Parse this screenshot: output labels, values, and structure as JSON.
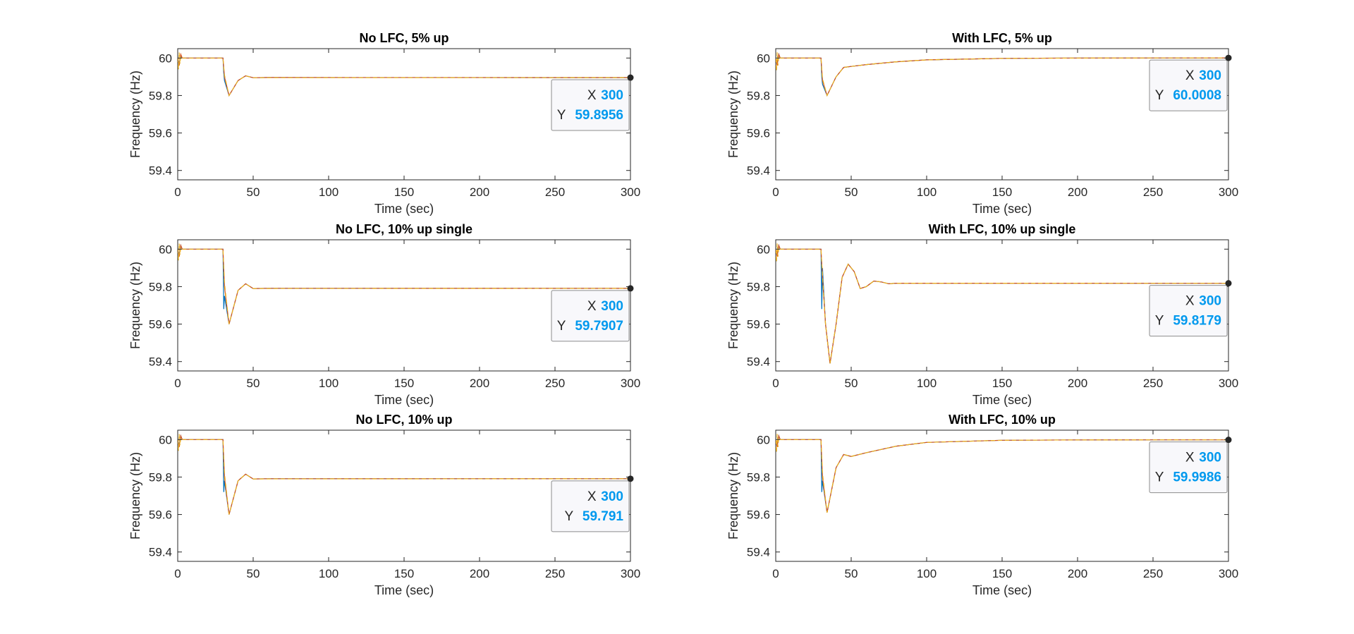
{
  "colors": {
    "series": [
      "#0072BD",
      "#D95319",
      "#EDB120",
      "#7E2F8E",
      "#77AC30"
    ],
    "tip_value": "#0099ee",
    "marker": "#262626"
  },
  "chart_data": [
    {
      "type": "line",
      "title": "No LFC, 5% up",
      "xlabel": "Time (sec)",
      "ylabel": "Frequency (Hz)",
      "xlim": [
        0,
        300
      ],
      "ylim": [
        59.35,
        60.05
      ],
      "xticks": [
        0,
        50,
        100,
        150,
        200,
        250,
        300
      ],
      "yticks": [
        59.4,
        59.6,
        59.8,
        60
      ],
      "grid": false,
      "series": [
        {
          "x": [
            0,
            1,
            2,
            3,
            30,
            30.5,
            31,
            34,
            40,
            45,
            50,
            60,
            300
          ],
          "y": [
            60,
            59.97,
            60.01,
            60,
            60,
            59.92,
            59.88,
            59.8,
            59.88,
            59.905,
            59.895,
            59.896,
            59.8956
          ]
        },
        {
          "x": [
            0,
            1,
            2,
            3,
            30,
            31,
            34,
            40,
            45,
            50,
            60,
            300
          ],
          "y": [
            60,
            59.96,
            60.02,
            60,
            60,
            59.9,
            59.8,
            59.88,
            59.905,
            59.895,
            59.896,
            59.8956
          ]
        },
        {
          "x": [
            0,
            0.5,
            1,
            1.5,
            2,
            3,
            30,
            31,
            34,
            40,
            45,
            50,
            300
          ],
          "y": [
            60,
            59.94,
            60.03,
            59.97,
            60.01,
            60,
            60,
            59.91,
            59.8,
            59.88,
            59.905,
            59.895,
            59.8956
          ]
        }
      ],
      "datatip": {
        "x": 300,
        "y": 59.8956,
        "x_label": "X",
        "y_label": "Y",
        "x_text": "300",
        "y_text": "59.8956"
      }
    },
    {
      "type": "line",
      "title": "With LFC, 5% up",
      "xlabel": "Time (sec)",
      "ylabel": "Frequency (Hz)",
      "xlim": [
        0,
        300
      ],
      "ylim": [
        59.35,
        60.05
      ],
      "xticks": [
        0,
        50,
        100,
        150,
        200,
        250,
        300
      ],
      "yticks": [
        59.4,
        59.6,
        59.8,
        60
      ],
      "grid": false,
      "series": [
        {
          "x": [
            0,
            1,
            2,
            3,
            30,
            30.5,
            31,
            34,
            40,
            45,
            50,
            60,
            80,
            100,
            150,
            200,
            250,
            300
          ],
          "y": [
            60,
            59.97,
            60.02,
            60,
            60,
            59.9,
            59.86,
            59.8,
            59.9,
            59.95,
            59.955,
            59.965,
            59.98,
            59.99,
            59.998,
            60,
            60.0005,
            60.0008
          ]
        },
        {
          "x": [
            0,
            1,
            2,
            3,
            30,
            31,
            34,
            40,
            45,
            50,
            60,
            80,
            100,
            150,
            200,
            250,
            300
          ],
          "y": [
            60,
            59.96,
            60.02,
            60,
            60,
            59.88,
            59.8,
            59.9,
            59.95,
            59.955,
            59.965,
            59.98,
            59.99,
            59.998,
            60,
            60.0005,
            60.0008
          ]
        },
        {
          "x": [
            0,
            0.5,
            1,
            1.5,
            2,
            3,
            30,
            31,
            34,
            40,
            45,
            50,
            60,
            80,
            100,
            150,
            200,
            250,
            300
          ],
          "y": [
            60,
            59.93,
            60.03,
            59.96,
            60.01,
            60,
            60,
            59.89,
            59.8,
            59.9,
            59.95,
            59.955,
            59.965,
            59.98,
            59.99,
            59.998,
            60,
            60.0005,
            60.0008
          ]
        }
      ],
      "datatip": {
        "x": 300,
        "y": 60.0008,
        "x_label": "X",
        "y_label": "Y",
        "x_text": "300",
        "y_text": "60.0008"
      }
    },
    {
      "type": "line",
      "title": "No LFC, 10% up single",
      "xlabel": "Time (sec)",
      "ylabel": "Frequency (Hz)",
      "xlim": [
        0,
        300
      ],
      "ylim": [
        59.35,
        60.05
      ],
      "xticks": [
        0,
        50,
        100,
        150,
        200,
        250,
        300
      ],
      "yticks": [
        59.4,
        59.6,
        59.8,
        60
      ],
      "grid": false,
      "series": [
        {
          "x": [
            0,
            1,
            2,
            3,
            30,
            30.5,
            31,
            34,
            40,
            45,
            50,
            60,
            300
          ],
          "y": [
            60,
            59.97,
            60.02,
            60,
            60,
            59.68,
            59.75,
            59.6,
            59.78,
            59.815,
            59.79,
            59.791,
            59.7907
          ]
        },
        {
          "x": [
            0,
            1,
            2,
            3,
            30,
            31,
            34,
            40,
            45,
            50,
            60,
            300
          ],
          "y": [
            60,
            59.96,
            60.02,
            60,
            60,
            59.8,
            59.6,
            59.78,
            59.815,
            59.79,
            59.791,
            59.7907
          ]
        },
        {
          "x": [
            0,
            0.5,
            1,
            1.5,
            2,
            3,
            30,
            31,
            34,
            40,
            45,
            50,
            300
          ],
          "y": [
            60,
            59.94,
            60.03,
            59.97,
            60.01,
            60,
            60,
            59.82,
            59.6,
            59.78,
            59.815,
            59.79,
            59.7907
          ]
        }
      ],
      "datatip": {
        "x": 300,
        "y": 59.7907,
        "x_label": "X",
        "y_label": "Y",
        "x_text": "300",
        "y_text": "59.7907"
      }
    },
    {
      "type": "line",
      "title": "With LFC, 10% up single",
      "xlabel": "Time (sec)",
      "ylabel": "Frequency (Hz)",
      "xlim": [
        0,
        300
      ],
      "ylim": [
        59.35,
        60.05
      ],
      "xticks": [
        0,
        50,
        100,
        150,
        200,
        250,
        300
      ],
      "yticks": [
        59.4,
        59.6,
        59.8,
        60
      ],
      "grid": false,
      "series": [
        {
          "x": [
            0,
            1,
            2,
            3,
            30,
            30.5,
            31,
            33,
            36,
            40,
            44,
            48,
            52,
            56,
            60,
            65,
            70,
            75,
            80,
            100,
            300
          ],
          "y": [
            60,
            59.97,
            60.02,
            60,
            60,
            59.68,
            59.9,
            59.6,
            59.39,
            59.6,
            59.85,
            59.92,
            59.88,
            59.79,
            59.8,
            59.83,
            59.825,
            59.815,
            59.818,
            59.818,
            59.8179
          ]
        },
        {
          "x": [
            0,
            1,
            2,
            3,
            30,
            31,
            33,
            36,
            40,
            44,
            48,
            52,
            56,
            60,
            65,
            70,
            75,
            80,
            100,
            300
          ],
          "y": [
            60,
            59.96,
            60.02,
            60,
            60,
            59.85,
            59.6,
            59.39,
            59.6,
            59.85,
            59.92,
            59.88,
            59.79,
            59.8,
            59.83,
            59.825,
            59.815,
            59.818,
            59.818,
            59.8179
          ]
        },
        {
          "x": [
            0,
            0.5,
            1,
            1.5,
            2,
            3,
            30,
            31,
            33,
            36,
            40,
            44,
            48,
            52,
            56,
            60,
            65,
            70,
            75,
            80,
            300
          ],
          "y": [
            60,
            59.93,
            60.03,
            59.96,
            60.01,
            60,
            60,
            59.86,
            59.6,
            59.39,
            59.6,
            59.85,
            59.92,
            59.88,
            59.79,
            59.8,
            59.83,
            59.825,
            59.815,
            59.818,
            59.8179
          ]
        }
      ],
      "datatip": {
        "x": 300,
        "y": 59.8179,
        "x_label": "X",
        "y_label": "Y",
        "x_text": "300",
        "y_text": "59.8179"
      }
    },
    {
      "type": "line",
      "title": "No LFC, 10% up",
      "xlabel": "Time (sec)",
      "ylabel": "Frequency (Hz)",
      "xlim": [
        0,
        300
      ],
      "ylim": [
        59.35,
        60.05
      ],
      "xticks": [
        0,
        50,
        100,
        150,
        200,
        250,
        300
      ],
      "yticks": [
        59.4,
        59.6,
        59.8,
        60
      ],
      "grid": false,
      "series": [
        {
          "x": [
            0,
            1,
            2,
            3,
            30,
            30.5,
            31,
            34,
            40,
            45,
            50,
            60,
            300
          ],
          "y": [
            60,
            59.97,
            60.02,
            60,
            60,
            59.72,
            59.78,
            59.6,
            59.78,
            59.815,
            59.79,
            59.791,
            59.791
          ]
        },
        {
          "x": [
            0,
            1,
            2,
            3,
            30,
            31,
            34,
            40,
            45,
            50,
            60,
            300
          ],
          "y": [
            60,
            59.96,
            60.02,
            60,
            60,
            59.8,
            59.6,
            59.78,
            59.815,
            59.79,
            59.791,
            59.791
          ]
        },
        {
          "x": [
            0,
            0.5,
            1,
            1.5,
            2,
            3,
            30,
            31,
            34,
            40,
            45,
            50,
            300
          ],
          "y": [
            60,
            59.94,
            60.03,
            59.97,
            60.01,
            60,
            60,
            59.82,
            59.6,
            59.78,
            59.815,
            59.79,
            59.791
          ]
        }
      ],
      "datatip": {
        "x": 300,
        "y": 59.791,
        "x_label": "X",
        "y_label": "Y",
        "x_text": "300",
        "y_text": "59.791"
      }
    },
    {
      "type": "line",
      "title": "With LFC, 10% up",
      "xlabel": "Time (sec)",
      "ylabel": "Frequency (Hz)",
      "xlim": [
        0,
        300
      ],
      "ylim": [
        59.35,
        60.05
      ],
      "xticks": [
        0,
        50,
        100,
        150,
        200,
        250,
        300
      ],
      "yticks": [
        59.4,
        59.6,
        59.8,
        60
      ],
      "grid": false,
      "series": [
        {
          "x": [
            0,
            1,
            2,
            3,
            30,
            30.5,
            31,
            34,
            40,
            45,
            50,
            60,
            80,
            100,
            150,
            200,
            250,
            300
          ],
          "y": [
            60,
            59.97,
            60.02,
            60,
            60,
            59.72,
            59.78,
            59.61,
            59.85,
            59.92,
            59.91,
            59.93,
            59.965,
            59.985,
            59.996,
            59.998,
            59.9985,
            59.9986
          ]
        },
        {
          "x": [
            0,
            1,
            2,
            3,
            30,
            31,
            34,
            40,
            45,
            50,
            60,
            80,
            100,
            150,
            200,
            250,
            300
          ],
          "y": [
            60,
            59.96,
            60.02,
            60,
            60,
            59.8,
            59.61,
            59.85,
            59.92,
            59.91,
            59.93,
            59.965,
            59.985,
            59.996,
            59.998,
            59.9985,
            59.9986
          ]
        },
        {
          "x": [
            0,
            0.5,
            1,
            1.5,
            2,
            3,
            30,
            31,
            34,
            40,
            45,
            50,
            60,
            80,
            100,
            150,
            200,
            250,
            300
          ],
          "y": [
            60,
            59.93,
            60.03,
            59.96,
            60.01,
            60,
            60,
            59.82,
            59.61,
            59.85,
            59.92,
            59.91,
            59.93,
            59.965,
            59.985,
            59.996,
            59.998,
            59.9985,
            59.9986
          ]
        }
      ],
      "datatip": {
        "x": 300,
        "y": 59.9986,
        "x_label": "X",
        "y_label": "Y",
        "x_text": "300",
        "y_text": "59.9986"
      }
    }
  ]
}
